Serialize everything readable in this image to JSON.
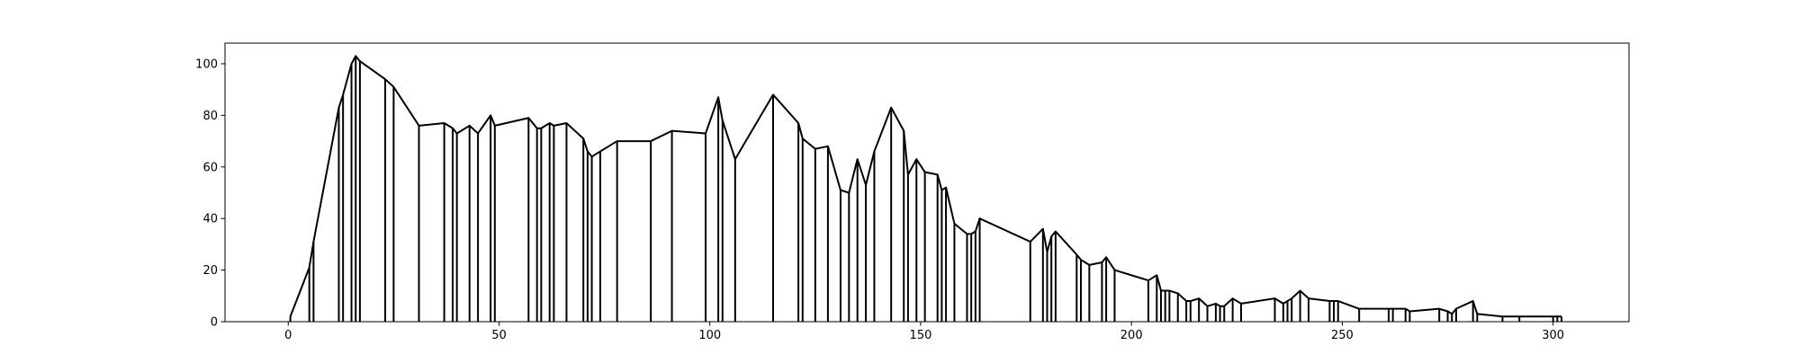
{
  "chart_data": {
    "type": "line",
    "drop_lines": true,
    "color": "#000000",
    "x": [
      0.5,
      5,
      6,
      12,
      13,
      15,
      16,
      17,
      23,
      25,
      31,
      37,
      39,
      40,
      43,
      45,
      48,
      49,
      57,
      59,
      60,
      62,
      63,
      66,
      70,
      71,
      72,
      74,
      78,
      86,
      91,
      99,
      102,
      103,
      106,
      115,
      121,
      122,
      125,
      128,
      131,
      133,
      135,
      137,
      139,
      143,
      146,
      147,
      149,
      151,
      154,
      155,
      156,
      158,
      161,
      162,
      163,
      164,
      176,
      179,
      180,
      181,
      182,
      187,
      188,
      190,
      193,
      194,
      196,
      204,
      206,
      207,
      208,
      209,
      211,
      213,
      214,
      216,
      218,
      220,
      221,
      222,
      224,
      226,
      234,
      236,
      237,
      238,
      240,
      242,
      247,
      248,
      249,
      254,
      261,
      262,
      265,
      266,
      273,
      275,
      276,
      277,
      281,
      282,
      288,
      292,
      300,
      301,
      302
    ],
    "values": [
      2,
      21,
      31,
      83,
      88,
      100,
      103,
      101,
      94,
      91,
      76,
      77,
      75,
      73,
      76,
      73,
      80,
      76,
      79,
      75,
      75,
      77,
      76,
      77,
      71,
      66,
      64,
      66,
      70,
      70,
      74,
      73,
      87,
      78,
      63,
      88,
      77,
      71,
      67,
      68,
      51,
      50,
      63,
      53,
      66,
      83,
      74,
      57,
      63,
      58,
      57,
      51,
      52,
      38,
      34,
      34,
      35,
      40,
      31,
      36,
      27,
      33,
      35,
      26,
      24,
      22,
      23,
      25,
      20,
      16,
      18,
      12,
      12,
      12,
      11,
      8,
      8,
      9,
      6,
      7,
      6,
      6,
      9,
      7,
      9,
      7,
      8,
      9,
      12,
      9,
      8,
      8,
      8,
      5,
      5,
      5,
      5,
      4,
      5,
      4,
      3,
      5,
      8,
      3,
      2,
      2,
      2,
      2,
      2
    ],
    "xlim": [
      -15,
      318
    ],
    "ylim": [
      0,
      108
    ],
    "xticks": [
      0,
      50,
      100,
      150,
      200,
      250,
      300
    ],
    "yticks": [
      0,
      20,
      40,
      60,
      80,
      100
    ]
  }
}
